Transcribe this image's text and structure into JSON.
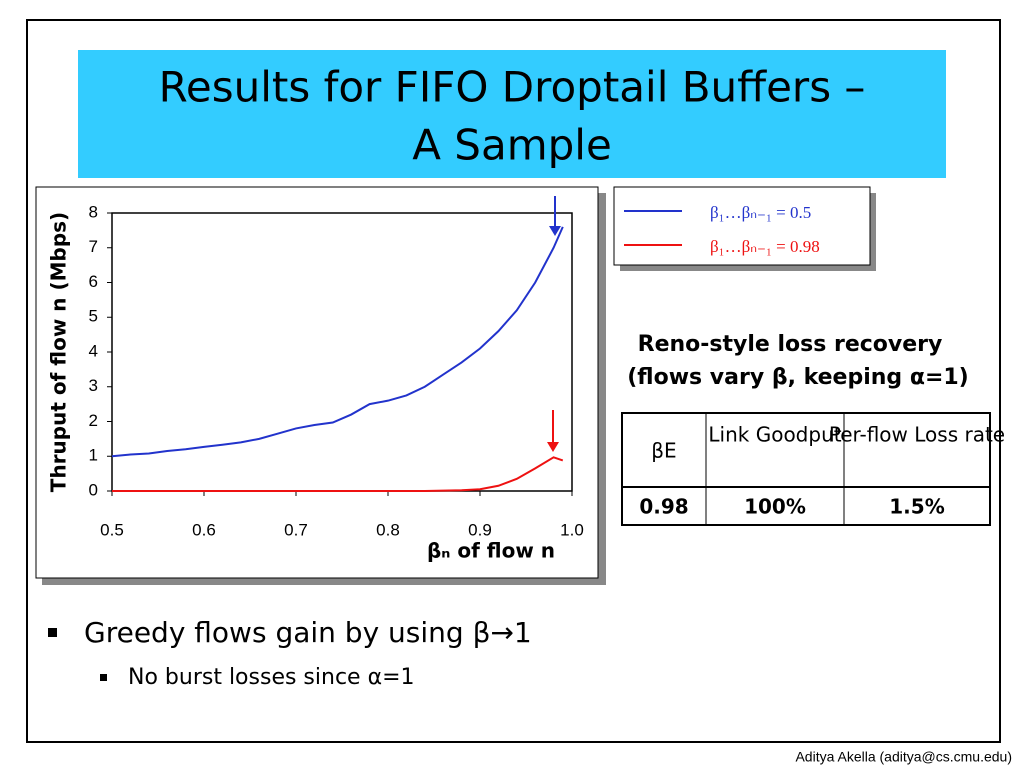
{
  "slide": {
    "title": [
      "Results for FIFO Droptail Buffers –",
      "A Sample"
    ],
    "subtitle": [
      "Reno-style loss recovery",
      "(flows vary β, keeping α=1)"
    ],
    "table": {
      "header": [
        "βE",
        "Link Goodput",
        "Per-flow Loss rate"
      ],
      "rows": [
        [
          "0.98",
          "100%",
          "1.5%"
        ]
      ]
    },
    "bullets": [
      {
        "text": "Greedy flows gain by using β→1",
        "sub": [
          "No burst losses since α=1"
        ]
      }
    ],
    "footer": "Aditya Akella (aditya@cs.cmu.edu)"
  },
  "chart_data": {
    "type": "line",
    "xlabel": "βₙ of flow n",
    "ylabel": "Thruput of flow n (Mbps)",
    "x": [
      0.5,
      0.52,
      0.54,
      0.56,
      0.58,
      0.6,
      0.62,
      0.64,
      0.66,
      0.68,
      0.7,
      0.72,
      0.74,
      0.76,
      0.78,
      0.8,
      0.82,
      0.84,
      0.86,
      0.88,
      0.9,
      0.92,
      0.94,
      0.96,
      0.98,
      0.99
    ],
    "series": [
      {
        "name": "β₁…βₙ₋₁ = 0.5",
        "color": "#2233cc",
        "values": [
          1.0,
          1.05,
          1.08,
          1.15,
          1.2,
          1.27,
          1.33,
          1.4,
          1.5,
          1.65,
          1.8,
          1.9,
          1.97,
          2.2,
          2.5,
          2.6,
          2.75,
          3.0,
          3.35,
          3.7,
          4.1,
          4.6,
          5.2,
          6.0,
          7.0,
          7.6
        ]
      },
      {
        "name": "β₁…βₙ₋₁ = 0.98",
        "color": "#ee1111",
        "values": [
          0,
          0,
          0,
          0,
          0,
          0,
          0,
          0,
          0,
          0,
          0,
          0,
          0,
          0,
          0,
          0,
          0,
          0,
          0.01,
          0.02,
          0.05,
          0.15,
          0.35,
          0.65,
          0.97,
          0.88
        ]
      }
    ],
    "xlim": [
      0.5,
      1
    ],
    "xticks": [
      0.5,
      0.6,
      0.7,
      0.8,
      0.9,
      {
        "value": 1,
        "label": "1.0"
      }
    ],
    "ylim": [
      0,
      8
    ],
    "yticks": [
      0,
      1,
      2,
      3,
      4,
      5,
      6,
      7,
      8
    ],
    "grid": false,
    "legend": "outside-top-right"
  }
}
